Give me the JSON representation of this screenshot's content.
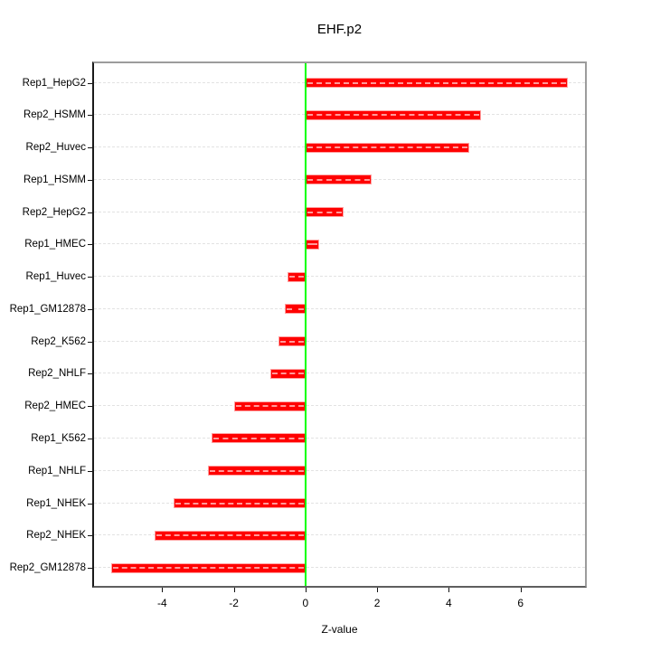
{
  "chart_data": {
    "type": "bar",
    "orientation": "horizontal",
    "title": "EHF.p2",
    "xlabel": "Z-value",
    "ylabel": "",
    "categories": [
      "Rep1_HepG2",
      "Rep2_HSMM",
      "Rep2_Huvec",
      "Rep1_HSMM",
      "Rep2_HepG2",
      "Rep1_HMEC",
      "Rep1_Huvec",
      "Rep1_GM12878",
      "Rep2_K562",
      "Rep2_NHLF",
      "Rep2_HMEC",
      "Rep1_K562",
      "Rep1_NHLF",
      "Rep1_NHEK",
      "Rep2_NHEK",
      "Rep2_GM12878"
    ],
    "values": [
      7.32,
      4.89,
      4.57,
      1.85,
      1.07,
      0.38,
      -0.51,
      -0.57,
      -0.76,
      -0.99,
      -1.98,
      -2.61,
      -2.71,
      -3.68,
      -4.22,
      -5.42
    ],
    "xlim": [
      -5.9,
      7.8
    ],
    "x_ticks": [
      "-4",
      "-2",
      "0",
      "2",
      "4",
      "6"
    ],
    "x_tick_values": [
      -4,
      -2,
      0,
      2,
      4,
      6
    ],
    "zero_line_at": 0,
    "grid": "horizontal-dashed",
    "legend": "none",
    "colors": {
      "bar_fill": "#FF0000",
      "bar_edge": "#FFA0A0",
      "bar_dash_overlay": "rgba(255,255,255,0.6)",
      "zero_line": "#00FF00",
      "gridline": "#E2E2E2",
      "box_top": "#9C9C9C",
      "box_right": "#9C9C9C",
      "box_bottom": "#5E5E5E",
      "box_left": "#1A1A1A",
      "text": "#000000",
      "background": "#FFFFFF"
    }
  }
}
